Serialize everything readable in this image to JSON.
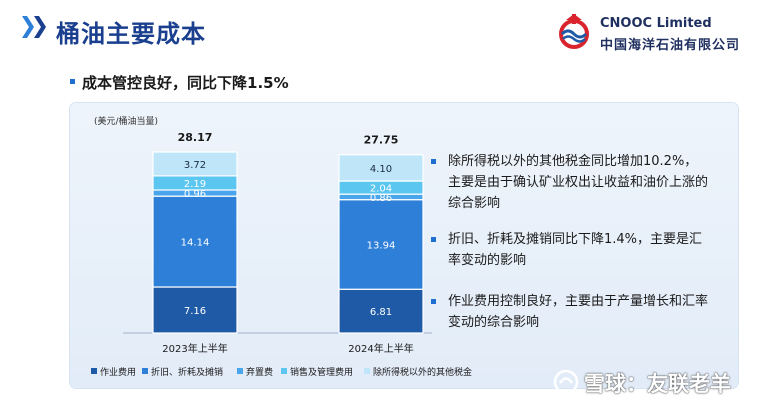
{
  "header": {
    "title": "桶油主要成本",
    "company_en": "CNOOC Limited",
    "company_cn": "中国海洋石油有限公司"
  },
  "headline": "成本管控良好，同比下降1.5%",
  "chart_data": {
    "type": "bar",
    "stacked": true,
    "unit_label": "(美元/桶油当量)",
    "categories": [
      "2023年上半年",
      "2024年上半年"
    ],
    "totals": [
      28.17,
      27.75
    ],
    "total_labels": [
      "28.17",
      "27.75"
    ],
    "series": [
      {
        "name": "作业费用",
        "values": [
          7.16,
          6.81
        ],
        "labels": [
          "7.16",
          "6.81"
        ],
        "color": "#1f5aa6"
      },
      {
        "name": "折旧、折耗及摊销",
        "values": [
          14.14,
          13.94
        ],
        "labels": [
          "14.14",
          "13.94"
        ],
        "color": "#2e7fd8"
      },
      {
        "name": "弃置费",
        "values": [
          0.96,
          0.86
        ],
        "labels": [
          "0.96",
          "0.86"
        ],
        "color": "#4aa6ec"
      },
      {
        "name": "销售及管理费用",
        "values": [
          2.19,
          2.04
        ],
        "labels": [
          "2.19",
          "2.04"
        ],
        "color": "#5bc6f0"
      },
      {
        "name": "除所得税以外的其他税金",
        "values": [
          3.72,
          4.1
        ],
        "labels": [
          "3.72",
          "4.10"
        ],
        "color": "#bfe6f8"
      }
    ],
    "ylim": [
      0,
      28.17
    ],
    "grid": false,
    "legend_position": "bottom"
  },
  "notes": [
    "除所得税以外的其他税金同比增加10.2%，主要是由于确认矿业权出让收益和油价上涨的综合影响",
    "折旧、折耗及摊销同比下降1.4%，主要是汇率变动的影响",
    "作业费用控制良好，主要由于产量增长和汇率变动的综合影响"
  ],
  "watermark": "雪球：友联老羊",
  "colors": {
    "title": "#1a3f8f",
    "accent": "#1f6fd1"
  }
}
